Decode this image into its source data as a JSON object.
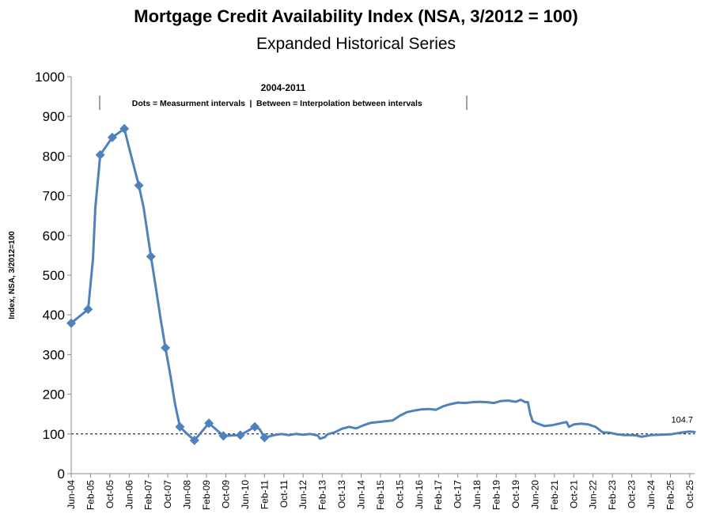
{
  "chart_data": {
    "type": "line",
    "title": "Mortgage Credit Availability Index (NSA, 3/2012 = 100)",
    "subtitle": "Expanded Historical Series",
    "ylabel": "Index, NSA, 3/2012=100",
    "xlabel": "",
    "ylim": [
      0,
      1000
    ],
    "yticks": [
      0,
      100,
      200,
      300,
      400,
      500,
      600,
      700,
      800,
      900,
      1000
    ],
    "xticks": [
      "Jun-04",
      "Feb-05",
      "Oct-05",
      "Jun-06",
      "Feb-07",
      "Oct-07",
      "Jun-08",
      "Feb-09",
      "Oct-09",
      "Jun-10",
      "Feb-11",
      "Oct-11",
      "Jun-12",
      "Feb-13",
      "Oct-13",
      "Jun-14",
      "Feb-15",
      "Oct-15",
      "Jun-16",
      "Feb-17",
      "Oct-17",
      "Jun-18",
      "Feb-19",
      "Oct-19",
      "Jun-20",
      "Feb-21",
      "Oct-21",
      "Jun-22",
      "Feb-23",
      "Oct-23",
      "Jun-24",
      "Feb-25",
      "Oct-25"
    ],
    "x_start": "Jun-04",
    "x_end": "Dec-25",
    "reference_line": 100,
    "grid": false,
    "annotation": {
      "title": "2004-2011",
      "left_text": "Dots = Measurment intervals",
      "right_text": "Between = Interpolation between intervals",
      "separator": "|"
    },
    "end_label": "104.7",
    "series": [
      {
        "color": "#4F81BD",
        "markers": [
          [
            "Jun-04",
            379
          ],
          [
            "Jan-05",
            414
          ],
          [
            "Jun-05",
            803
          ],
          [
            "Nov-05",
            847
          ],
          [
            "Apr-06",
            869
          ],
          [
            "Oct-06",
            726
          ],
          [
            "Mar-07",
            547
          ],
          [
            "Sep-07",
            317
          ],
          [
            "Mar-08",
            118
          ],
          [
            "Sep-08",
            84
          ],
          [
            "Mar-09",
            127
          ],
          [
            "Sep-09",
            95
          ],
          [
            "Apr-10",
            97
          ],
          [
            "Oct-10",
            118
          ],
          [
            "Feb-11",
            91
          ]
        ],
        "values": [
          [
            "Jun-04",
            379
          ],
          [
            "Jan-05",
            414
          ],
          [
            "Mar-05",
            540
          ],
          [
            "Apr-05",
            670
          ],
          [
            "Jun-05",
            803
          ],
          [
            "Nov-05",
            847
          ],
          [
            "Apr-06",
            869
          ],
          [
            "Jun-06",
            820
          ],
          [
            "Oct-06",
            726
          ],
          [
            "Dec-06",
            670
          ],
          [
            "Mar-07",
            547
          ],
          [
            "May-07",
            470
          ],
          [
            "Jul-07",
            390
          ],
          [
            "Sep-07",
            317
          ],
          [
            "Nov-07",
            250
          ],
          [
            "Jan-08",
            175
          ],
          [
            "Mar-08",
            118
          ],
          [
            "Jun-08",
            100
          ],
          [
            "Sep-08",
            84
          ],
          [
            "Mar-09",
            127
          ],
          [
            "Sep-09",
            95
          ],
          [
            "Apr-10",
            97
          ],
          [
            "Oct-10",
            118
          ],
          [
            "Dec-10",
            112
          ],
          [
            "Feb-11",
            91
          ],
          [
            "Jun-11",
            97
          ],
          [
            "Sep-11",
            100
          ],
          [
            "Dec-11",
            97
          ],
          [
            "Mar-12",
            100
          ],
          [
            "Jun-12",
            98
          ],
          [
            "Sep-12",
            100
          ],
          [
            "Dec-12",
            96
          ],
          [
            "Jan-13",
            88
          ],
          [
            "Mar-13",
            92
          ],
          [
            "Apr-13",
            99
          ],
          [
            "Jul-13",
            104
          ],
          [
            "Oct-13",
            113
          ],
          [
            "Jan-14",
            118
          ],
          [
            "Apr-14",
            114
          ],
          [
            "Jul-14",
            122
          ],
          [
            "Oct-14",
            128
          ],
          [
            "Jan-15",
            130
          ],
          [
            "Apr-15",
            132
          ],
          [
            "Jul-15",
            134
          ],
          [
            "Oct-15",
            146
          ],
          [
            "Jan-16",
            155
          ],
          [
            "Apr-16",
            159
          ],
          [
            "Jul-16",
            162
          ],
          [
            "Oct-16",
            163
          ],
          [
            "Jan-17",
            161
          ],
          [
            "Apr-17",
            170
          ],
          [
            "Jul-17",
            175
          ],
          [
            "Oct-17",
            179
          ],
          [
            "Jan-18",
            178
          ],
          [
            "Apr-18",
            180
          ],
          [
            "Jul-18",
            181
          ],
          [
            "Oct-18",
            180
          ],
          [
            "Jan-19",
            178
          ],
          [
            "Apr-19",
            183
          ],
          [
            "Jul-19",
            184
          ],
          [
            "Oct-19",
            181
          ],
          [
            "Dec-19",
            186
          ],
          [
            "Feb-20",
            180
          ],
          [
            "Mar-20",
            180
          ],
          [
            "Apr-20",
            150
          ],
          [
            "May-20",
            132
          ],
          [
            "Jul-20",
            126
          ],
          [
            "Oct-20",
            120
          ],
          [
            "Jan-21",
            122
          ],
          [
            "Apr-21",
            126
          ],
          [
            "Jul-21",
            130
          ],
          [
            "Aug-21",
            118
          ],
          [
            "Oct-21",
            124
          ],
          [
            "Jan-22",
            126
          ],
          [
            "Apr-22",
            124
          ],
          [
            "Jul-22",
            118
          ],
          [
            "Oct-22",
            104
          ],
          [
            "Jan-23",
            103
          ],
          [
            "Apr-23",
            99
          ],
          [
            "Jul-23",
            97
          ],
          [
            "Oct-23",
            97
          ],
          [
            "Dec-23",
            96
          ],
          [
            "Feb-24",
            93
          ],
          [
            "Jun-24",
            97
          ],
          [
            "Oct-24",
            98
          ],
          [
            "Feb-25",
            99
          ],
          [
            "Jun-25",
            103
          ],
          [
            "Oct-25",
            106
          ],
          [
            "Dec-25",
            104.7
          ]
        ]
      }
    ]
  }
}
